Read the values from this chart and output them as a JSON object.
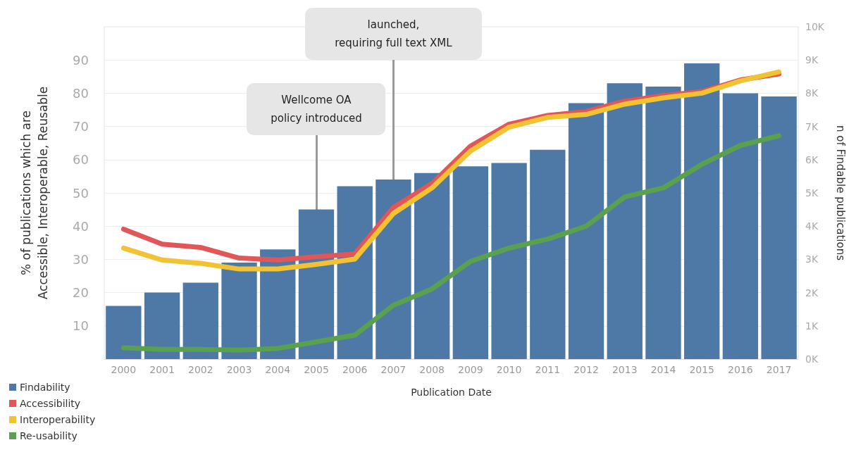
{
  "chart_data": {
    "type": "bar",
    "categories": [
      "2000",
      "2001",
      "2002",
      "2003",
      "2004",
      "2005",
      "2006",
      "2007",
      "2008",
      "2009",
      "2010",
      "2011",
      "2012",
      "2013",
      "2014",
      "2015",
      "2016",
      "2017"
    ],
    "series": [
      {
        "name": "Findability",
        "axis": "y2",
        "color": "#4e79a7",
        "values": [
          1600,
          2000,
          2300,
          2900,
          3300,
          4500,
          5200,
          5400,
          5600,
          5800,
          5900,
          6300,
          7700,
          8300,
          8200,
          8900,
          8000,
          7900
        ]
      },
      {
        "name": "Accessibility",
        "type": "line",
        "color": "#e15759",
        "values": [
          39.1,
          34.6,
          33.6,
          30.4,
          29.8,
          30.8,
          31.6,
          45.6,
          52.8,
          64.1,
          70.7,
          73.3,
          74.5,
          77.6,
          79.3,
          80.5,
          84.0,
          85.8
        ]
      },
      {
        "name": "Interoperability",
        "type": "line",
        "color": "#f1c232",
        "values": [
          33.4,
          29.8,
          28.8,
          27.1,
          27.1,
          28.5,
          30.1,
          43.8,
          51.5,
          62.6,
          69.8,
          72.7,
          73.6,
          76.7,
          78.6,
          80.0,
          83.7,
          86.4
        ]
      },
      {
        "name": "Re-usability",
        "type": "line",
        "color": "#59a14f",
        "values": [
          3.4,
          2.9,
          2.9,
          2.7,
          3.2,
          5.2,
          7.2,
          16.2,
          21.1,
          29.4,
          33.4,
          36.1,
          40.0,
          48.8,
          51.5,
          58.6,
          64.3,
          67.2
        ]
      }
    ],
    "xlabel": "Publication Date",
    "ylabel": "% of publications which are Accessible, Interoperable, Reusable",
    "y2label": "n of Findable publications",
    "ylim": [
      0,
      100
    ],
    "yticks": [
      10,
      20,
      30,
      40,
      50,
      60,
      70,
      80,
      90
    ],
    "y2lim": [
      0,
      10000
    ],
    "y2ticks": [
      {
        "value": 0,
        "label": "0K"
      },
      {
        "value": 1000,
        "label": "1K"
      },
      {
        "value": 2000,
        "label": "2K"
      },
      {
        "value": 3000,
        "label": "3K"
      },
      {
        "value": 4000,
        "label": "4K"
      },
      {
        "value": 5000,
        "label": "5K"
      },
      {
        "value": 6000,
        "label": "6K"
      },
      {
        "value": 7000,
        "label": "7K"
      },
      {
        "value": 8000,
        "label": "8K"
      },
      {
        "value": 9000,
        "label": "9K"
      },
      {
        "value": 10000,
        "label": "10K"
      }
    ],
    "annotations": [
      {
        "text": "Wellcome OA\npolicy introduced",
        "x": "2005",
        "y": 44.6
      },
      {
        "text": "launched,\nrequiring full text XML",
        "x": "2007",
        "y": 53.7
      }
    ],
    "grid": "y",
    "legend": "bottom left",
    "marker": "none",
    "line_style": "solid"
  }
}
